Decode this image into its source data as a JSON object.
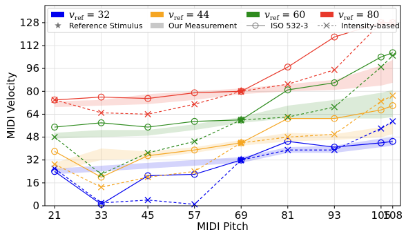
{
  "chart_data": {
    "type": "line",
    "xlabel": "MIDI Pitch",
    "ylabel": "MIDI Velocity",
    "x": [
      21,
      33,
      45,
      57,
      69,
      81,
      93,
      105,
      108
    ],
    "x_ticks": [
      "21",
      "33",
      "45",
      "57",
      "69",
      "81",
      "93",
      "105",
      "108"
    ],
    "y_ticks": [
      "0",
      "16",
      "32",
      "48",
      "64",
      "80",
      "96",
      "112",
      "128"
    ],
    "xlim": [
      18.5,
      110
    ],
    "ylim": [
      0,
      140
    ],
    "grid": true,
    "legend_position": "top",
    "series": [
      {
        "color": "#0000ee",
        "v_ref": "32",
        "reference_stimulus": {
          "x": 69,
          "y": 32
        },
        "iso_532_3": [
          24,
          1,
          21,
          22,
          32,
          45,
          41,
          44,
          45
        ],
        "intensity_based": [
          26,
          2,
          4,
          1,
          32,
          39,
          39,
          54,
          59
        ],
        "our_measurement_band": {
          "lower": [
            22,
            24,
            26,
            28,
            30,
            37,
            37,
            41,
            42
          ],
          "upper": [
            26,
            28,
            30,
            32,
            34,
            41,
            42,
            47,
            48
          ]
        }
      },
      {
        "color": "#f5a623",
        "v_ref": "44",
        "reference_stimulus": {
          "x": 69,
          "y": 44
        },
        "iso_532_3": [
          38,
          20,
          35,
          39,
          44,
          61,
          61,
          67,
          70
        ],
        "intensity_based": [
          29,
          13,
          20,
          24,
          44,
          48,
          50,
          73,
          77
        ],
        "our_measurement_band": {
          "lower": [
            24,
            32,
            33,
            37,
            42,
            45,
            46,
            48,
            50
          ],
          "upper": [
            30,
            40,
            38,
            41,
            46,
            51,
            50,
            55,
            58
          ]
        }
      },
      {
        "color": "#2e8b1e",
        "v_ref": "60",
        "reference_stimulus": {
          "x": 69,
          "y": 60
        },
        "iso_532_3": [
          55,
          58,
          55,
          59,
          60,
          81,
          86,
          104,
          107
        ],
        "intensity_based": [
          48,
          22,
          37,
          45,
          60,
          62,
          69,
          97,
          105
        ],
        "our_measurement_band": {
          "lower": [
            47,
            48,
            49,
            53,
            58,
            61,
            61,
            61,
            62
          ],
          "upper": [
            51,
            53,
            53,
            57,
            62,
            70,
            74,
            79,
            81
          ]
        }
      },
      {
        "color": "#e8392b",
        "v_ref": "80",
        "reference_stimulus": {
          "x": 69,
          "y": 80
        },
        "iso_532_3": [
          74,
          76,
          75,
          79,
          80,
          97,
          118,
          128,
          128
        ],
        "intensity_based": [
          74,
          65,
          64,
          71,
          80,
          85,
          95,
          128,
          128
        ],
        "our_measurement_band": {
          "lower": [
            69,
            70,
            71,
            74,
            78,
            80,
            81,
            84,
            86
          ],
          "upper": [
            73,
            74,
            78,
            80,
            82,
            85,
            88,
            98,
            102
          ]
        }
      }
    ],
    "legend": {
      "series_labels": [
        {
          "main": "v",
          "sub": "ref",
          "rest": " = 32"
        },
        {
          "main": "v",
          "sub": "ref",
          "rest": " = 44"
        },
        {
          "main": "v",
          "sub": "ref",
          "rest": " = 60"
        },
        {
          "main": "v",
          "sub": "ref",
          "rest": " = 80"
        }
      ],
      "style_labels": [
        "Reference Stimulus",
        "Our Measurement",
        "ISO 532-3",
        "Intensity-based"
      ],
      "band_color": "#c8c8c8",
      "marker_color": "#777777"
    }
  }
}
